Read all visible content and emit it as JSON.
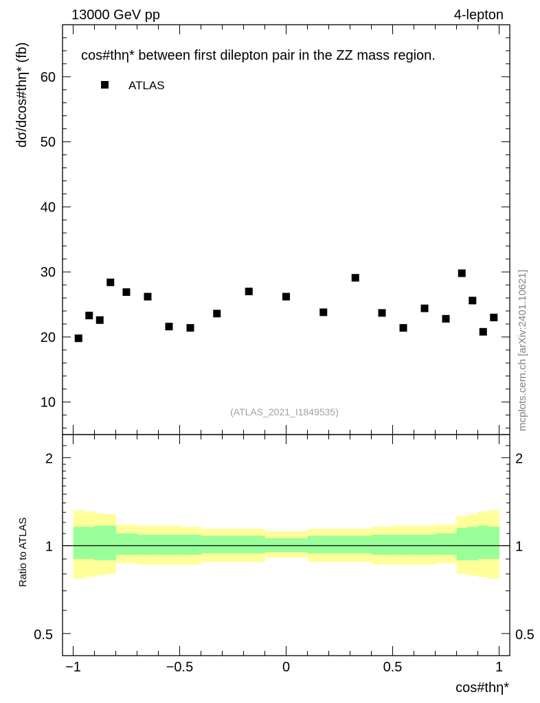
{
  "header": {
    "energy_label": "13000 GeV pp",
    "channel_label": "4-lepton"
  },
  "side_label": "mcplots.cern.ch [arXiv:2401.10621]",
  "chart_data": {
    "type": "scatter",
    "title": "cos#thη* between first dilepton pair in the ZZ mass region.",
    "xlabel": "cos#thη*",
    "ylabel": "dσ/dcos#thη* (fb)",
    "analysis_id": "(ATLAS_2021_I1849535)",
    "xlim": [
      -1.05,
      1.05
    ],
    "ylim": [
      5,
      68
    ],
    "xticks": [
      {
        "value": -1,
        "label": "−1"
      },
      {
        "value": -0.5,
        "label": "−0.5"
      },
      {
        "value": 0,
        "label": "0"
      },
      {
        "value": 0.5,
        "label": "0.5"
      },
      {
        "value": 1,
        "label": "1"
      }
    ],
    "yticks": [
      10,
      20,
      30,
      40,
      50,
      60
    ],
    "legend": {
      "placement": "top-left",
      "entries": [
        "ATLAS"
      ]
    },
    "series": [
      {
        "name": "ATLAS",
        "color": "#000000",
        "x": [
          -0.975,
          -0.925,
          -0.875,
          -0.825,
          -0.75,
          -0.65,
          -0.55,
          -0.45,
          -0.325,
          -0.175,
          0.0,
          0.175,
          0.325,
          0.45,
          0.55,
          0.65,
          0.75,
          0.825,
          0.875,
          0.925,
          0.975
        ],
        "y": [
          19.8,
          23.3,
          22.6,
          28.4,
          26.9,
          26.2,
          21.6,
          21.4,
          23.6,
          27.0,
          26.2,
          23.8,
          29.1,
          23.7,
          21.4,
          24.4,
          22.8,
          29.8,
          25.6,
          20.8,
          23.0
        ]
      }
    ],
    "ratio": {
      "ylabel": "Ratio to ATLAS",
      "ylim": [
        0.42,
        2.4
      ],
      "log": true,
      "yticks": [
        {
          "value": 0.5,
          "label": "0.5"
        },
        {
          "value": 1,
          "label": "1"
        },
        {
          "value": 2,
          "label": "2"
        }
      ],
      "reference": 1,
      "bin_edges": [
        -1.0,
        -0.95,
        -0.9,
        -0.85,
        -0.8,
        -0.7,
        -0.6,
        -0.5,
        -0.4,
        -0.25,
        -0.1,
        0.1,
        0.25,
        0.4,
        0.5,
        0.6,
        0.7,
        0.8,
        0.85,
        0.9,
        0.95,
        1.0
      ],
      "green_band": {
        "color": "#99ff99",
        "low": [
          0.9,
          0.9,
          0.89,
          0.89,
          0.93,
          0.93,
          0.93,
          0.93,
          0.94,
          0.94,
          0.95,
          0.94,
          0.94,
          0.93,
          0.93,
          0.93,
          0.93,
          0.89,
          0.89,
          0.9,
          0.9
        ],
        "high": [
          1.16,
          1.16,
          1.17,
          1.17,
          1.1,
          1.09,
          1.09,
          1.09,
          1.08,
          1.08,
          1.06,
          1.08,
          1.08,
          1.09,
          1.09,
          1.09,
          1.1,
          1.15,
          1.16,
          1.17,
          1.16
        ]
      },
      "yellow_band": {
        "color": "#ffff99",
        "low": [
          0.77,
          0.78,
          0.79,
          0.8,
          0.87,
          0.86,
          0.86,
          0.86,
          0.88,
          0.88,
          0.91,
          0.88,
          0.88,
          0.86,
          0.86,
          0.86,
          0.87,
          0.8,
          0.79,
          0.78,
          0.77
        ],
        "high": [
          1.32,
          1.31,
          1.29,
          1.28,
          1.18,
          1.17,
          1.17,
          1.16,
          1.14,
          1.14,
          1.12,
          1.14,
          1.14,
          1.16,
          1.17,
          1.17,
          1.18,
          1.26,
          1.28,
          1.31,
          1.32
        ]
      }
    }
  }
}
